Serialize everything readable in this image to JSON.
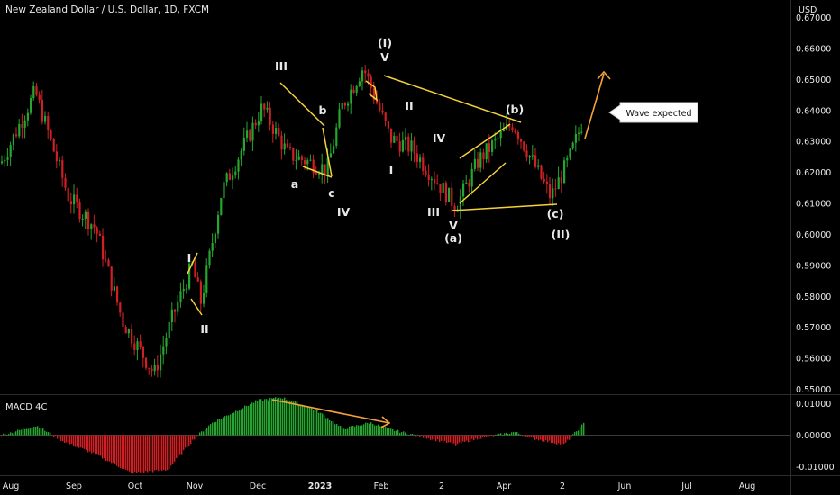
{
  "header": {
    "title": "New Zealand Dollar / U.S. Dollar, 1D, FXCM",
    "currency": "USD"
  },
  "colors": {
    "background": "#000000",
    "up": "#26a630",
    "down": "#d02024",
    "annotation": "#f5d23a",
    "arrow": "#f6a13a",
    "text": "#e8e8e8",
    "grid": "#2a2a2a"
  },
  "chart_data": [
    {
      "type": "candlestick",
      "title": "New Zealand Dollar / U.S. Dollar, 1D, FXCM",
      "x_ticks": [
        "Aug",
        "Sep",
        "Oct",
        "Nov",
        "Dec",
        "2023",
        "Feb",
        "2",
        "Apr",
        "2",
        "Jun",
        "Jul",
        "Aug"
      ],
      "y_unit": "USD",
      "y_ticks": [
        "0.67000",
        "0.66000",
        "0.65000",
        "0.64000",
        "0.63000",
        "0.62000",
        "0.61000",
        "0.60000",
        "0.59000",
        "0.58000",
        "0.57000",
        "0.56000",
        "0.55000"
      ],
      "ylim": [
        0.5484,
        0.6757
      ],
      "grid": false,
      "price_path": [
        {
          "x": "Aug",
          "close": 0.623
        },
        {
          "x": "Aug",
          "close": 0.646
        },
        {
          "x": "Sep",
          "close": 0.612
        },
        {
          "x": "Sep",
          "close": 0.602
        },
        {
          "x": "Sep",
          "close": 0.572
        },
        {
          "x": "Oct",
          "close": 0.555
        },
        {
          "x": "Oct",
          "close": 0.573
        },
        {
          "x": "Nov",
          "close": 0.59
        },
        {
          "x": "Nov",
          "close": 0.578
        },
        {
          "x": "Nov",
          "close": 0.614
        },
        {
          "x": "Dec",
          "close": 0.641
        },
        {
          "x": "Dec",
          "close": 0.626
        },
        {
          "x": "2023",
          "close": 0.621
        },
        {
          "x": "2023",
          "close": 0.641
        },
        {
          "x": "2023",
          "close": 0.654
        },
        {
          "x": "Feb",
          "close": 0.631
        },
        {
          "x": "Feb",
          "close": 0.628
        },
        {
          "x": "2",
          "close": 0.609
        },
        {
          "x": "2",
          "close": 0.624
        },
        {
          "x": "Apr",
          "close": 0.636
        },
        {
          "x": "Apr",
          "close": 0.612
        },
        {
          "x": "2",
          "close": 0.624
        },
        {
          "x": "2",
          "close": 0.637
        }
      ],
      "wave_labels": [
        "III",
        "b",
        "a",
        "c",
        "IV",
        "(I)",
        "V",
        "II",
        "I",
        "IV",
        "III",
        "V",
        "(a)",
        "(b)",
        "(c)",
        "(II)",
        "I",
        "II"
      ],
      "callout": "Wave expected"
    },
    {
      "type": "bar",
      "title": "MACD 4C",
      "y_ticks": [
        "0.01000",
        "0.00000",
        "-0.01000"
      ],
      "ylim": [
        -0.0127,
        0.0127
      ],
      "grid": false,
      "histogram_path": [
        {
          "x": "Aug",
          "value": 0.0
        },
        {
          "x": "Aug",
          "value": 0.003
        },
        {
          "x": "Sep",
          "value": -0.002
        },
        {
          "x": "Sep",
          "value": -0.006
        },
        {
          "x": "Oct",
          "value": -0.012
        },
        {
          "x": "Oct",
          "value": -0.011
        },
        {
          "x": "Nov",
          "value": -0.001
        },
        {
          "x": "Nov",
          "value": 0.004
        },
        {
          "x": "Dec",
          "value": 0.011
        },
        {
          "x": "Dec",
          "value": 0.012
        },
        {
          "x": "2023",
          "value": 0.008
        },
        {
          "x": "2023",
          "value": 0.002
        },
        {
          "x": "Feb",
          "value": 0.004
        },
        {
          "x": "Feb",
          "value": 0.002
        },
        {
          "x": "2",
          "value": -0.003
        },
        {
          "x": "2",
          "value": -0.001
        },
        {
          "x": "Apr",
          "value": 0.001
        },
        {
          "x": "Apr",
          "value": -0.001
        },
        {
          "x": "2",
          "value": -0.003
        },
        {
          "x": "2",
          "value": 0.004
        }
      ]
    }
  ]
}
